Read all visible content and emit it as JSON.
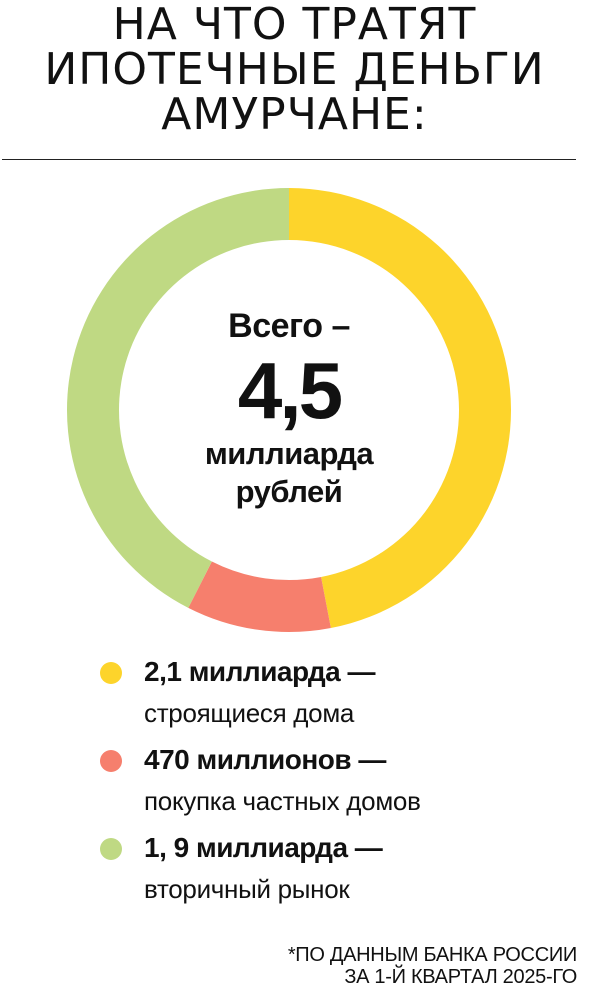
{
  "title": {
    "line1": "НА ЧТО ТРАТЯТ",
    "line2": "ИПОТЕЧНЫЕ ДЕНЬГИ",
    "line3": "АМУРЧАНЕ:"
  },
  "center": {
    "lead": "Всего –",
    "value": "4,5",
    "unit_line1": "миллиарда",
    "unit_line2": "рублей"
  },
  "chart_data": {
    "type": "pie",
    "title": "НА ЧТО ТРАТЯТ ИПОТЕЧНЫЕ ДЕНЬГИ АМУРЧАНЕ:",
    "total": 4.5,
    "units": "млрд рублей",
    "segments": [
      {
        "label": "строящиеся дома",
        "value_text": "2,1 миллиарда —",
        "value": 2.1,
        "color": "#FDD42B"
      },
      {
        "label": "покупка частных домов",
        "value_text": "470 миллионов —",
        "value": 0.47,
        "color": "#F67F6D"
      },
      {
        "label": "вторичный рынок",
        "value_text": "1, 9 миллиарда —",
        "value": 1.9,
        "color": "#BFD983"
      }
    ]
  },
  "footnote": {
    "line1": "*ПО ДАННЫМ БАНКА РОССИИ",
    "line2": "ЗА 1-Й КВАРТАЛ 2025-ГО"
  }
}
